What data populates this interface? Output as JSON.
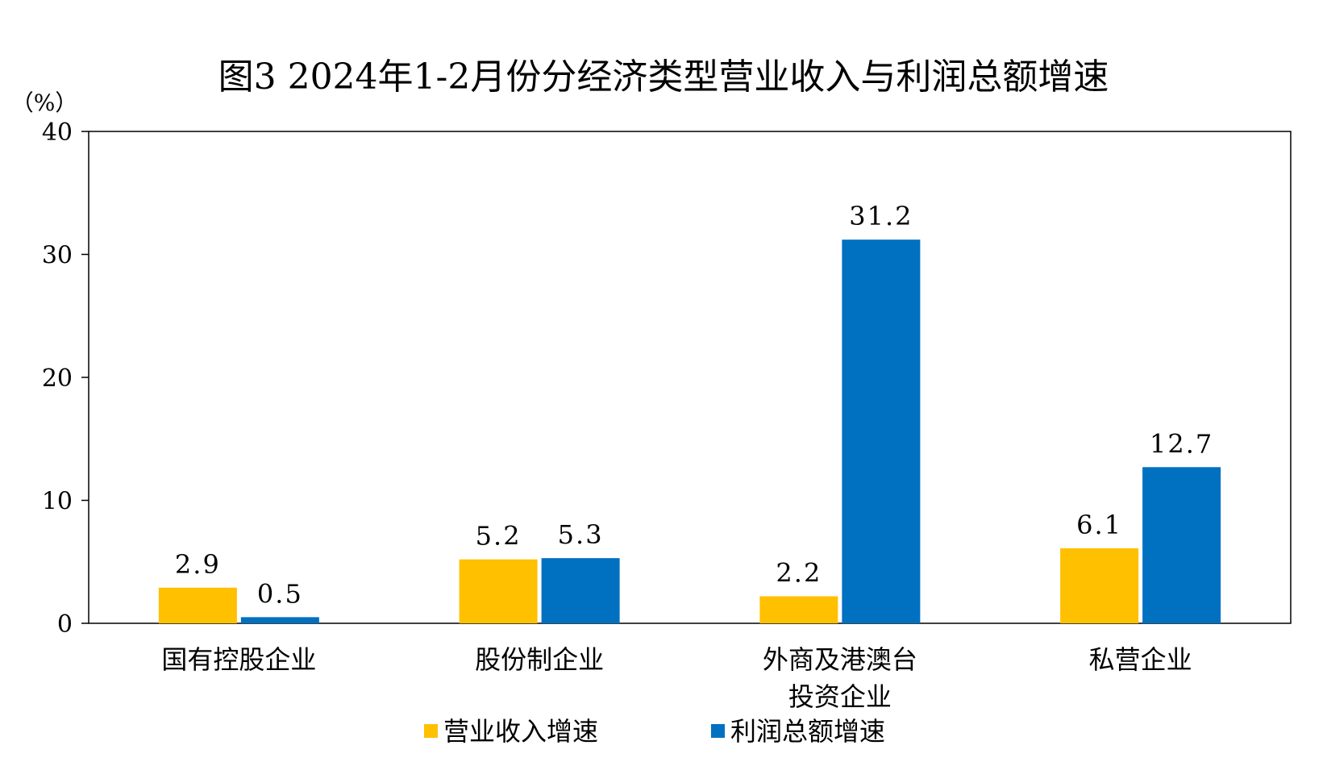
{
  "chart_data": {
    "type": "bar",
    "title": "图3  2024年1-2月份分经济类型营业收入与利润总额增速",
    "unit_label": "（%）",
    "categories": [
      [
        "国有控股企业"
      ],
      [
        "股份制企业"
      ],
      [
        "外商及港澳台",
        "投资企业"
      ],
      [
        "私营企业"
      ]
    ],
    "series": [
      {
        "name": "营业收入增速",
        "color": "#FFC000",
        "values": [
          2.9,
          5.2,
          2.2,
          6.1
        ],
        "labels": [
          "2.9",
          "5.2",
          "2.2",
          "6.1"
        ]
      },
      {
        "name": "利润总额增速",
        "color": "#0070C0",
        "values": [
          0.5,
          5.3,
          31.2,
          12.7
        ],
        "labels": [
          "0.5",
          "5.3",
          "31.2",
          "12.7"
        ]
      }
    ],
    "ylim": [
      0,
      40
    ],
    "yticks": [
      "0",
      "10",
      "20",
      "30",
      "40"
    ],
    "ytick_values": [
      0,
      10,
      20,
      30,
      40
    ],
    "grid": false,
    "legend_position": "bottom"
  }
}
